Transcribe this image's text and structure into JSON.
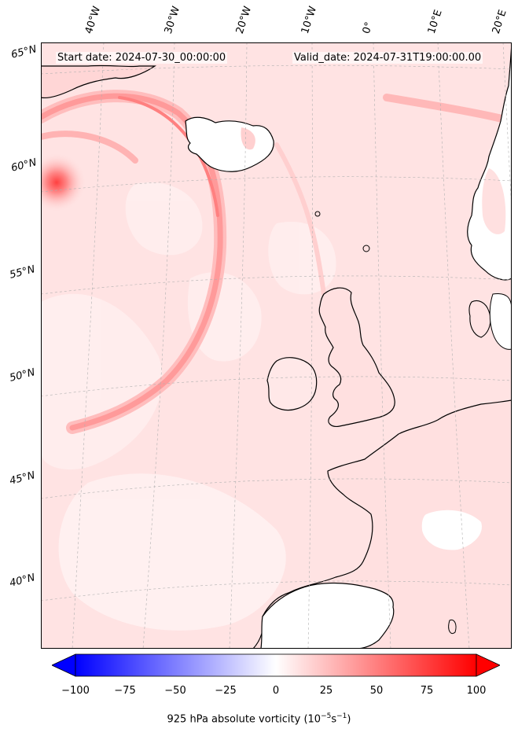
{
  "header": {
    "start_date": "Start date: 2024-07-30_00:00:00",
    "valid_date": "Valid_date: 2024-07-31T19:00:00.00"
  },
  "longitude_labels": [
    "40°W",
    "30°W",
    "20°W",
    "10°W",
    "0°",
    "10°E",
    "20°E"
  ],
  "latitude_labels": [
    "65°N",
    "60°N",
    "55°N",
    "50°N",
    "45°N",
    "40°N"
  ],
  "colorbar": {
    "min": -100,
    "max": 100,
    "ticks": [
      "−100",
      "−75",
      "−50",
      "−25",
      "0",
      "25",
      "50",
      "75",
      "100"
    ],
    "colors": {
      "negative": "#0000ff",
      "zero": "#ffffff",
      "positive": "#ff0000"
    },
    "extend": "both",
    "label": "925 hPa absolute vorticity (10",
    "label_exp1": "−5",
    "label_mid": "s",
    "label_exp2": "−1",
    "label_end": ")"
  },
  "colors": {
    "background_field": "#ffe6e6",
    "coastline": "#000000",
    "land_low_vorticity": "#ffffff",
    "strong_vorticity": "#ff4d4d",
    "grid": "#b0b0b0"
  }
}
